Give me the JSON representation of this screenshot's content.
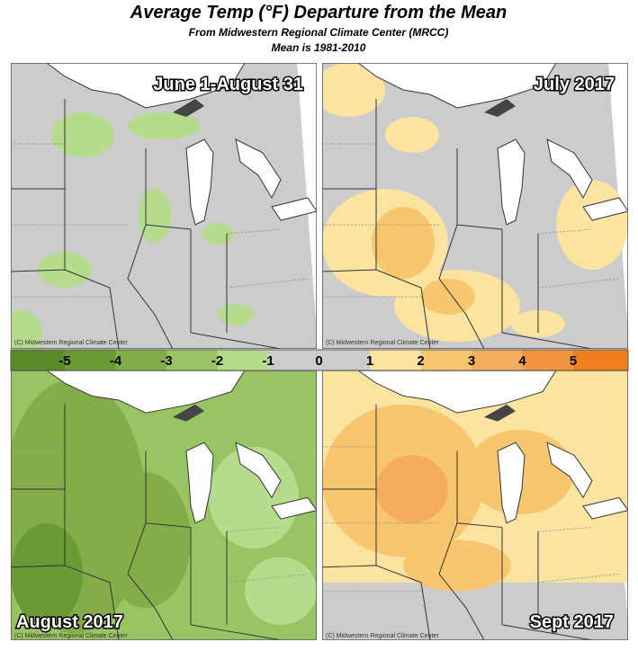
{
  "title": "Average Temp (°F) Departure from the Mean",
  "subtitle": "From Midwestern Regional Climate Center (MRCC)",
  "note": "Mean is 1981-2010",
  "panels": [
    {
      "label": "June 1-August 31",
      "credit": "(C) Midwestern Regional Climate Center"
    },
    {
      "label": "July 2017",
      "credit": "(C) Midwestern Regional Climate Center"
    },
    {
      "label": "August 2017",
      "credit": "(C) Midwestern Regional Climate Center"
    },
    {
      "label": "Sept 2017",
      "credit": "(C) Midwestern Regional Climate Center"
    }
  ],
  "legend": {
    "labels": [
      -5,
      -4,
      -3,
      -2,
      -1,
      0,
      1,
      2,
      3,
      4,
      5
    ],
    "colors": [
      "#5a8a2a",
      "#6a9a35",
      "#82ad48",
      "#99c463",
      "#b4dc8c",
      "#cccccc",
      "#cccccc",
      "#fbe3a0",
      "#f8c66e",
      "#f5ac5c",
      "#f39440",
      "#f07f1e"
    ]
  }
}
